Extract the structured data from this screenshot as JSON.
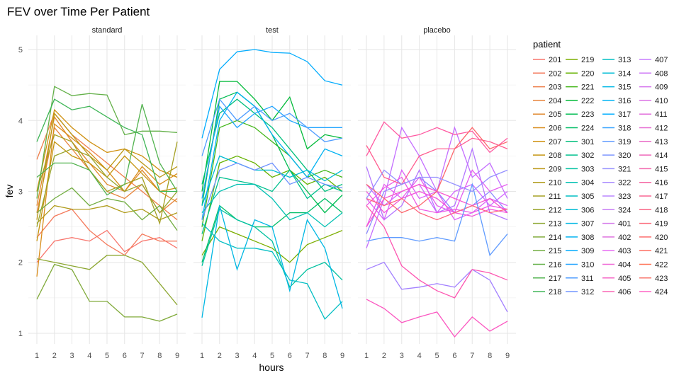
{
  "chart_data": {
    "type": "line",
    "title": "FEV over Time Per Patient",
    "xlabel": "hours",
    "ylabel": "fev",
    "xlim": [
      1,
      9
    ],
    "ylim": [
      0.85,
      5.2
    ],
    "x_ticks": [
      "1",
      "2",
      "3",
      "4",
      "5",
      "6",
      "7",
      "8",
      "9"
    ],
    "y_ticks": [
      "1",
      "2",
      "3",
      "4",
      "5"
    ],
    "grid": true,
    "legend_title": "patient",
    "legend_placement": "right",
    "x": [
      1,
      2,
      3,
      4,
      5,
      6,
      7,
      8,
      9
    ],
    "panels": [
      {
        "label": "standard",
        "series": [
          {
            "name": "201",
            "color": "#F8766D",
            "values": [
              2.0,
              2.3,
              2.35,
              2.3,
              2.45,
              2.15,
              2.3,
              2.35,
              2.2
            ]
          },
          {
            "name": "202",
            "color": "#F47A5C",
            "values": [
              2.35,
              2.65,
              2.75,
              2.45,
              2.25,
              2.1,
              2.4,
              2.3,
              2.3
            ]
          },
          {
            "name": "203",
            "color": "#EE7E4A",
            "values": [
              3.45,
              4.1,
              3.8,
              3.6,
              3.4,
              3.2,
              3.0,
              2.8,
              2.6
            ]
          },
          {
            "name": "204",
            "color": "#E7833A",
            "values": [
              2.7,
              3.9,
              3.6,
              3.3,
              3.0,
              2.9,
              3.1,
              2.7,
              2.9
            ]
          },
          {
            "name": "205",
            "color": "#E0872A",
            "values": [
              2.8,
              4.05,
              3.7,
              3.4,
              3.1,
              3.0,
              3.3,
              3.0,
              2.85
            ]
          },
          {
            "name": "206",
            "color": "#D88C1A",
            "values": [
              1.8,
              3.95,
              3.75,
              3.55,
              3.3,
              3.0,
              3.35,
              3.1,
              3.25
            ]
          },
          {
            "name": "207",
            "color": "#CF9010",
            "values": [
              3.0,
              4.15,
              3.9,
              3.7,
              3.55,
              3.6,
              3.5,
              3.3,
              3.2
            ]
          },
          {
            "name": "208",
            "color": "#C59410",
            "values": [
              2.3,
              3.7,
              3.5,
              3.4,
              3.2,
              3.5,
              3.25,
              3.0,
              3.05
            ]
          },
          {
            "name": "209",
            "color": "#BB9815",
            "values": [
              2.6,
              4.1,
              3.8,
              3.5,
              3.3,
              3.6,
              3.4,
              3.2,
              3.35
            ]
          },
          {
            "name": "210",
            "color": "#B09C1C",
            "values": [
              2.55,
              2.8,
              2.75,
              2.75,
              2.8,
              2.7,
              2.75,
              2.6,
              2.7
            ]
          },
          {
            "name": "211",
            "color": "#A5A023",
            "values": [
              3.0,
              3.8,
              3.7,
              3.3,
              3.0,
              3.1,
              3.2,
              2.55,
              3.7
            ]
          },
          {
            "name": "212",
            "color": "#99A42B",
            "values": [
              2.5,
              3.5,
              3.6,
              3.5,
              3.2,
              3.0,
              3.1,
              2.7,
              3.0
            ]
          },
          {
            "name": "213",
            "color": "#8DA732",
            "values": [
              2.05,
              2.0,
              1.95,
              1.9,
              2.1,
              2.1,
              2.0,
              1.7,
              1.4
            ]
          },
          {
            "name": "214",
            "color": "#80AA3A",
            "values": [
              1.48,
              1.97,
              1.9,
              1.45,
              1.45,
              1.23,
              1.23,
              1.17,
              1.27
            ]
          },
          {
            "name": "215",
            "color": "#72AD41",
            "values": [
              2.7,
              2.9,
              3.05,
              2.8,
              2.9,
              2.85,
              2.6,
              2.8,
              2.45
            ]
          },
          {
            "name": "216",
            "color": "#63B048",
            "values": [
              2.9,
              4.48,
              4.35,
              4.38,
              4.36,
              3.8,
              3.85,
              3.85,
              3.83
            ]
          },
          {
            "name": "217",
            "color": "#52B34F",
            "values": [
              3.2,
              3.4,
              3.4,
              3.3,
              2.95,
              3.1,
              4.23,
              3.4,
              3.0
            ]
          },
          {
            "name": "218",
            "color": "#3EB556",
            "values": [
              3.7,
              4.3,
              4.15,
              4.2,
              4.05,
              3.9,
              3.8,
              3.0,
              3.0
            ]
          }
        ]
      },
      {
        "label": "test",
        "series": [
          {
            "name": "219",
            "color": "#7CAE00",
            "values": [
              2.1,
              2.5,
              2.4,
              2.3,
              2.2,
              2.0,
              2.25,
              2.35,
              2.45
            ]
          },
          {
            "name": "220",
            "color": "#65B200",
            "values": [
              2.3,
              3.4,
              3.5,
              3.4,
              3.2,
              3.3,
              3.1,
              3.2,
              3.0
            ]
          },
          {
            "name": "221",
            "color": "#43B619",
            "values": [
              2.5,
              3.9,
              4.0,
              3.9,
              3.7,
              3.5,
              3.2,
              3.3,
              3.2
            ]
          },
          {
            "name": "222",
            "color": "#00BA38",
            "values": [
              3.0,
              4.55,
              4.55,
              4.3,
              4.0,
              4.33,
              3.6,
              3.8,
              3.75
            ]
          },
          {
            "name": "223",
            "color": "#00BC51",
            "values": [
              2.8,
              4.3,
              4.4,
              4.2,
              3.8,
              3.3,
              3.0,
              2.7,
              2.95
            ]
          },
          {
            "name": "224",
            "color": "#00BE67",
            "values": [
              2.0,
              2.8,
              2.6,
              2.5,
              2.5,
              2.7,
              2.7,
              2.9,
              2.7
            ]
          },
          {
            "name": "301",
            "color": "#00BF7C",
            "values": [
              3.1,
              4.1,
              4.3,
              4.1,
              3.9,
              3.6,
              3.3,
              3.0,
              3.1
            ]
          },
          {
            "name": "302",
            "color": "#00C08E",
            "values": [
              2.4,
              3.2,
              3.15,
              3.1,
              3.0,
              3.3,
              2.9,
              3.1,
              3.0
            ]
          },
          {
            "name": "303",
            "color": "#00C1A0",
            "values": [
              1.95,
              2.75,
              2.6,
              2.5,
              2.3,
              1.65,
              1.9,
              2.0,
              1.75
            ]
          },
          {
            "name": "304",
            "color": "#00C0B2",
            "values": [
              2.7,
              3.0,
              3.1,
              3.1,
              2.9,
              2.6,
              2.7,
              2.5,
              2.7
            ]
          },
          {
            "name": "305",
            "color": "#00BEC3",
            "values": [
              2.55,
              2.3,
              2.2,
              2.2,
              2.15,
              1.75,
              1.7,
              1.2,
              1.45
            ]
          },
          {
            "name": "306",
            "color": "#00BBD4",
            "values": [
              2.8,
              3.5,
              3.4,
              3.3,
              3.3,
              3.2,
              3.3,
              3.15,
              3.3
            ]
          },
          {
            "name": "307",
            "color": "#00B7E3",
            "values": [
              1.22,
              2.8,
              1.9,
              2.6,
              2.5,
              1.6,
              2.6,
              2.2,
              1.35
            ]
          },
          {
            "name": "308",
            "color": "#00B2F1",
            "values": [
              2.6,
              4.0,
              4.4,
              4.2,
              3.8,
              3.5,
              3.2,
              3.6,
              3.5
            ]
          },
          {
            "name": "309",
            "color": "#00ABFD",
            "values": [
              3.75,
              4.72,
              4.97,
              5.0,
              4.96,
              4.95,
              4.83,
              4.56,
              4.5
            ]
          },
          {
            "name": "310",
            "color": "#21A4FF",
            "values": [
              2.9,
              4.2,
              3.9,
              4.1,
              4.2,
              4.0,
              3.9,
              3.9,
              3.9
            ]
          },
          {
            "name": "311",
            "color": "#4E9CFF",
            "values": [
              3.5,
              4.3,
              4.0,
              4.2,
              4.0,
              4.1,
              3.9,
              3.7,
              3.75
            ]
          },
          {
            "name": "312",
            "color": "#6E92FF",
            "values": [
              2.6,
              3.3,
              3.4,
              3.3,
              3.4,
              3.1,
              3.2,
              3.1,
              3.05
            ]
          }
        ]
      },
      {
        "label": "placebo",
        "series": [
          {
            "name": "313",
            "color": "#8B89FF",
            "values": [
              2.4,
              3.0,
              3.1,
              3.2,
              3.0,
              2.7,
              2.8,
              3.0,
              2.7
            ]
          },
          {
            "name": "314",
            "color": "#A27FFF",
            "values": [
              1.9,
              2.0,
              1.62,
              1.65,
              1.7,
              1.65,
              1.9,
              1.75,
              1.3
            ]
          },
          {
            "name": "315",
            "color": "#B476FF",
            "values": [
              3.35,
              2.6,
              2.8,
              3.3,
              2.7,
              2.8,
              3.6,
              2.7,
              2.6
            ]
          },
          {
            "name": "316",
            "color": "#C46EFF",
            "values": [
              2.2,
              2.9,
              3.9,
              3.5,
              3.0,
              3.9,
              3.2,
              3.4,
              2.9
            ]
          },
          {
            "name": "317",
            "color": "#D166FF",
            "values": [
              3.1,
              2.8,
              3.0,
              3.1,
              2.7,
              3.0,
              3.1,
              2.8,
              3.0
            ]
          },
          {
            "name": "318",
            "color": "#DC61F8",
            "values": [
              2.9,
              2.6,
              3.3,
              2.9,
              3.0,
              2.6,
              2.7,
              2.9,
              2.8
            ]
          },
          {
            "name": "319",
            "color": "#E55DEF",
            "values": [
              2.5,
              3.1,
              2.9,
              3.2,
              2.8,
              2.7,
              3.3,
              3.0,
              3.1
            ]
          },
          {
            "name": "320",
            "color": "#ED59E5",
            "values": [
              2.8,
              3.05,
              3.2,
              2.75,
              2.7,
              2.75,
              2.7,
              2.8,
              2.75
            ]
          },
          {
            "name": "321",
            "color": "#F357DA",
            "values": [
              3.0,
              2.7,
              2.9,
              3.0,
              2.9,
              2.7,
              2.65,
              2.75,
              2.7
            ]
          },
          {
            "name": "322",
            "color": "#F855CE",
            "values": [
              2.5,
              2.9,
              3.0,
              3.1,
              3.0,
              2.9,
              2.8,
              2.9,
              2.7
            ]
          },
          {
            "name": "323",
            "color": "#FB55C0",
            "values": [
              1.48,
              1.35,
              1.15,
              1.23,
              1.3,
              0.95,
              1.23,
              1.03,
              1.17
            ]
          },
          {
            "name": "324",
            "color": "#FD56B1",
            "values": [
              2.8,
              2.5,
              1.95,
              1.75,
              1.6,
              1.5,
              1.9,
              1.85,
              1.75
            ]
          },
          {
            "name": "401",
            "color": "#FF59A1",
            "values": [
              3.5,
              3.98,
              3.75,
              3.8,
              3.9,
              3.8,
              3.85,
              3.55,
              3.75
            ]
          },
          {
            "name": "402",
            "color": "#FF5D90",
            "values": [
              3.65,
              3.2,
              3.1,
              3.5,
              3.6,
              3.6,
              3.75,
              3.7,
              3.6
            ]
          },
          {
            "name": "403",
            "color": "#FE627E",
            "values": [
              2.9,
              2.8,
              2.9,
              2.7,
              2.6,
              2.7,
              2.8,
              2.7,
              2.75
            ]
          },
          {
            "name": "404",
            "color": "#FC666C",
            "values": [
              3.1,
              2.9,
              2.7,
              2.8,
              3.0,
              3.6,
              3.9,
              3.6,
              3.7
            ]
          },
          {
            "name": "405",
            "color": "#619CFF",
            "values": [
              2.3,
              2.35,
              2.35,
              2.3,
              2.35,
              2.3,
              3.1,
              2.1,
              2.4
            ]
          },
          {
            "name": "406",
            "color": "#9590FF",
            "values": [
              2.9,
              3.3,
              3.1,
              3.2,
              3.2,
              3.1,
              3.0,
              3.2,
              3.3
            ]
          }
        ]
      }
    ],
    "legend_columns": [
      [
        "201",
        "202",
        "203",
        "204",
        "205",
        "206",
        "207",
        "208",
        "209",
        "210",
        "211",
        "212",
        "213",
        "214",
        "215",
        "216",
        "217",
        "218"
      ],
      [
        "219",
        "220",
        "221",
        "222",
        "223",
        "224",
        "301",
        "302",
        "303",
        "304",
        "305",
        "306",
        "307",
        "308",
        "309",
        "310",
        "311",
        "312"
      ],
      [
        "313",
        "314",
        "315",
        "316",
        "317",
        "318",
        "319",
        "320",
        "321",
        "322",
        "323",
        "324",
        "401",
        "402",
        "403",
        "404",
        "405",
        "406"
      ],
      [
        "407",
        "408",
        "409",
        "410",
        "411",
        "412",
        "413",
        "414",
        "415",
        "416",
        "417",
        "418",
        "419",
        "420",
        "421",
        "422",
        "423",
        "424"
      ]
    ],
    "legend_colors": [
      [
        "#F8766D",
        "#F47A5C",
        "#EE7E4A",
        "#E7833A",
        "#E0872A",
        "#D88C1A",
        "#CF9010",
        "#C59410",
        "#BB9815",
        "#B09C1C",
        "#A5A023",
        "#99A42B",
        "#8DA732",
        "#80AA3A",
        "#72AD41",
        "#63B048",
        "#52B34F",
        "#3EB556"
      ],
      [
        "#7CAE00",
        "#65B200",
        "#43B619",
        "#00BA38",
        "#00BC51",
        "#00BE67",
        "#00BF7C",
        "#00C08E",
        "#00C1A0",
        "#00C0B2",
        "#00BEC3",
        "#00BBD4",
        "#00B7E3",
        "#00B2F1",
        "#00ABFD",
        "#21A4FF",
        "#4E9CFF",
        "#6E92FF"
      ],
      [
        "#00BFC4",
        "#00BCD6",
        "#00B8E5",
        "#00B3F3",
        "#00ADFF",
        "#35A2FF",
        "#619CFF",
        "#7D96FF",
        "#9590FF",
        "#A98BFF",
        "#BA85FF",
        "#C87FF5",
        "#D478EA",
        "#DE71DE",
        "#E76BF3",
        "#EF67D6",
        "#F564C5",
        "#FA62B2"
      ],
      [
        "#C77CFF",
        "#CE78F7",
        "#D574EE",
        "#DB71E5",
        "#E16DDB",
        "#E66BD1",
        "#EA69C6",
        "#EE67BA",
        "#F266AE",
        "#F565A1",
        "#F86694",
        "#FA6787",
        "#FC6879",
        "#FD6B6C",
        "#FE6E60",
        "#FF7254",
        "#F8766D",
        "#FF61C3"
      ]
    ]
  }
}
